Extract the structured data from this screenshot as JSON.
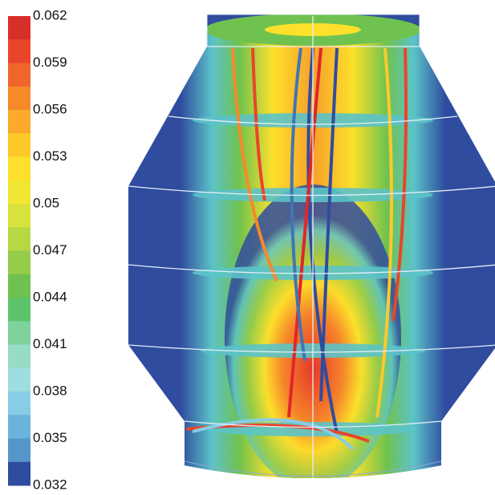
{
  "colorbar": {
    "clim": [
      0.032,
      0.062
    ],
    "ticks": [
      0.062,
      0.059,
      0.056,
      0.053,
      0.05,
      0.047,
      0.044,
      0.041,
      0.038,
      0.035,
      0.032
    ],
    "colors": [
      "#d7302a",
      "#e8452b",
      "#f0652a",
      "#f7892b",
      "#fbaa2c",
      "#fdc92a",
      "#fde02b",
      "#f2e634",
      "#d8e23c",
      "#b7d843",
      "#95cc4a",
      "#6fc24f",
      "#5cc36a",
      "#7dd39b",
      "#97dcc4",
      "#a0dde0",
      "#86cde6",
      "#6bb3dc",
      "#5796c8",
      "#2f4c9f"
    ]
  }
}
